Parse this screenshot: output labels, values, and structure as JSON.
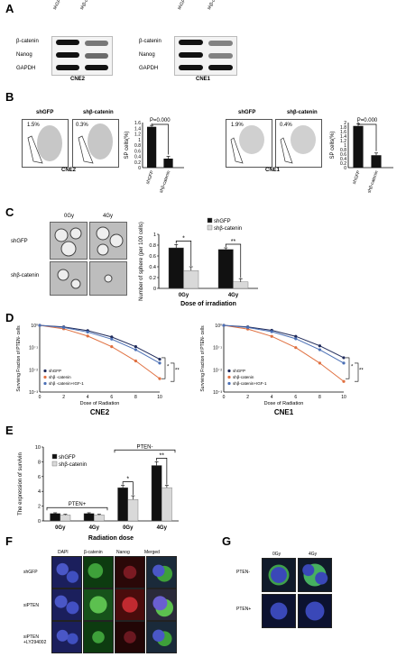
{
  "panels": {
    "A": {
      "label": "A",
      "lanes_left": [
        "shGFP",
        "shβ-catenin"
      ],
      "lanes_right": [
        "shGFP",
        "shβ-catenin"
      ],
      "rows": [
        "β-catenin",
        "Nanog",
        "GAPDH"
      ],
      "cell_lines": [
        "CNE2",
        "CNE1"
      ]
    },
    "B": {
      "label": "B",
      "flow_titles": [
        "shGFP",
        "shβ-catenin",
        "shGFP",
        "shβ-catenin"
      ],
      "percents": [
        "1.5%",
        "0.3%",
        "1.9%",
        "0.4%"
      ],
      "cell_lines": [
        "CNE2",
        "CNE1"
      ],
      "pvalue": "P=0.000",
      "ylabel": "SP cells(%)"
    },
    "C": {
      "label": "C",
      "dose_cols": [
        "0Gy",
        "4Gy"
      ],
      "row_labels": [
        "shGFP",
        "shβ-catenin"
      ],
      "sig": [
        "*",
        "**"
      ]
    },
    "D": {
      "label": "D",
      "cell_lines": [
        "CNE2",
        "CNE1"
      ],
      "sig": [
        "*",
        "**"
      ]
    },
    "E": {
      "label": "E",
      "group_labels": [
        "PTEN+",
        "PTEN-"
      ],
      "sig": [
        "*",
        "**"
      ]
    },
    "F": {
      "label": "F",
      "col_headers": [
        "DAPI",
        "β-catenin",
        "Nanog",
        "Merged"
      ],
      "row_labels": [
        "shGFP",
        "siPTEN",
        "siPTEN +LY294002"
      ]
    },
    "G": {
      "label": "G",
      "col_headers": [
        "0Gy",
        "4Gy"
      ],
      "row_labels": [
        "PTEN-",
        "PTEN+"
      ]
    }
  },
  "chart_data": [
    {
      "id": "B-left",
      "type": "bar",
      "categories": [
        "shGFP",
        "shβ-catenin"
      ],
      "values": [
        1.45,
        0.32
      ],
      "errors": [
        0.05,
        0.08
      ],
      "ylabel": "SP cells(%)",
      "ylim": [
        0,
        1.6
      ],
      "yticks": [
        "0",
        "0.2",
        "0.4",
        "0.6",
        "0.8",
        "1",
        "1.2",
        "1.4",
        "1.6"
      ],
      "annotation": "P=0.000"
    },
    {
      "id": "B-right",
      "type": "bar",
      "categories": [
        "shGFP",
        "shβ-catenin"
      ],
      "values": [
        1.85,
        0.55
      ],
      "errors": [
        0.1,
        0.1
      ],
      "ylabel": "SP cells(%)",
      "ylim": [
        0,
        2
      ],
      "yticks": [
        "0",
        "0.2",
        "0.4",
        "0.6",
        "0.8",
        "1",
        "1.2",
        "1.4",
        "1.6",
        "1.8",
        "2"
      ],
      "annotation": "P=0.000"
    },
    {
      "id": "C",
      "type": "bar",
      "categories": [
        "0Gy",
        "4Gy"
      ],
      "series": [
        {
          "name": "shGFP",
          "values": [
            0.75,
            0.72
          ],
          "errors": [
            0.06,
            0.03
          ],
          "color": "#111111"
        },
        {
          "name": "shβ-catenin",
          "values": [
            0.33,
            0.12
          ],
          "errors": [
            0.07,
            0.06
          ],
          "color": "#d9d9d9"
        }
      ],
      "ylabel": "Number of sphere (per 100 cells)",
      "xlabel": "Dose of irradiation",
      "ylim": [
        0,
        1
      ],
      "yticks": [
        "0",
        "0.2",
        "0.4",
        "0.6",
        "0.8",
        "1"
      ],
      "legend": "top-right"
    },
    {
      "id": "D-left",
      "type": "line",
      "x": [
        0,
        2,
        4,
        6,
        8,
        10
      ],
      "series": [
        {
          "name": "shGFP",
          "values": [
            1.0,
            0.85,
            0.58,
            0.3,
            0.11,
            0.03
          ],
          "color": "#1f2a5a"
        },
        {
          "name": "shβ -catenin",
          "values": [
            1.0,
            0.7,
            0.33,
            0.11,
            0.025,
            0.004
          ],
          "color": "#e07040"
        },
        {
          "name": "shβ -catenin+IGF-1",
          "values": [
            1.0,
            0.8,
            0.5,
            0.24,
            0.08,
            0.02
          ],
          "color": "#4a6fb5"
        }
      ],
      "ylabel": "Surviving Fraction of PTEN- cells",
      "xlabel": "Dose of Radiation",
      "yticks": [
        "10⁻³",
        "10⁻²",
        "10⁻¹",
        "10⁰"
      ],
      "xticks": [
        "0",
        "2",
        "4",
        "6",
        "8",
        "10"
      ],
      "scale": "log",
      "legend": "bottom-left"
    },
    {
      "id": "D-right",
      "type": "line",
      "x": [
        0,
        2,
        4,
        6,
        8,
        10
      ],
      "series": [
        {
          "name": "shGFP",
          "values": [
            1.0,
            0.85,
            0.6,
            0.32,
            0.12,
            0.035
          ],
          "color": "#1f2a5a"
        },
        {
          "name": "shβ-catenin",
          "values": [
            1.0,
            0.68,
            0.32,
            0.1,
            0.02,
            0.003
          ],
          "color": "#e07040"
        },
        {
          "name": "shβ-catenin+IGF-1",
          "values": [
            1.0,
            0.8,
            0.52,
            0.25,
            0.08,
            0.02
          ],
          "color": "#4a6fb5"
        }
      ],
      "ylabel": "Surviving Fraction of PTEN- cells",
      "xlabel": "Dose of Radiation",
      "yticks": [
        "10⁻³",
        "10⁻²",
        "10⁻¹",
        "10⁰"
      ],
      "xticks": [
        "0",
        "2",
        "4",
        "6",
        "8",
        "10"
      ],
      "scale": "log",
      "legend": "bottom-left"
    },
    {
      "id": "E",
      "type": "bar",
      "categories": [
        "0Gy",
        "4Gy",
        "0Gy",
        "4Gy"
      ],
      "series": [
        {
          "name": "shGFP",
          "values": [
            1.0,
            1.0,
            4.5,
            7.5
          ],
          "errors": [
            0.1,
            0.1,
            0.3,
            0.5
          ],
          "color": "#111111"
        },
        {
          "name": "shβ-catenin",
          "values": [
            0.8,
            0.8,
            2.9,
            4.5
          ],
          "errors": [
            0.1,
            0.1,
            0.5,
            0.3
          ],
          "color": "#d9d9d9"
        }
      ],
      "ylabel": "The expression of survivin",
      "xlabel": "Radiation dose",
      "ylim": [
        0,
        10
      ],
      "yticks": [
        "0",
        "2",
        "4",
        "6",
        "8",
        "10"
      ],
      "legend": "top-left"
    }
  ]
}
